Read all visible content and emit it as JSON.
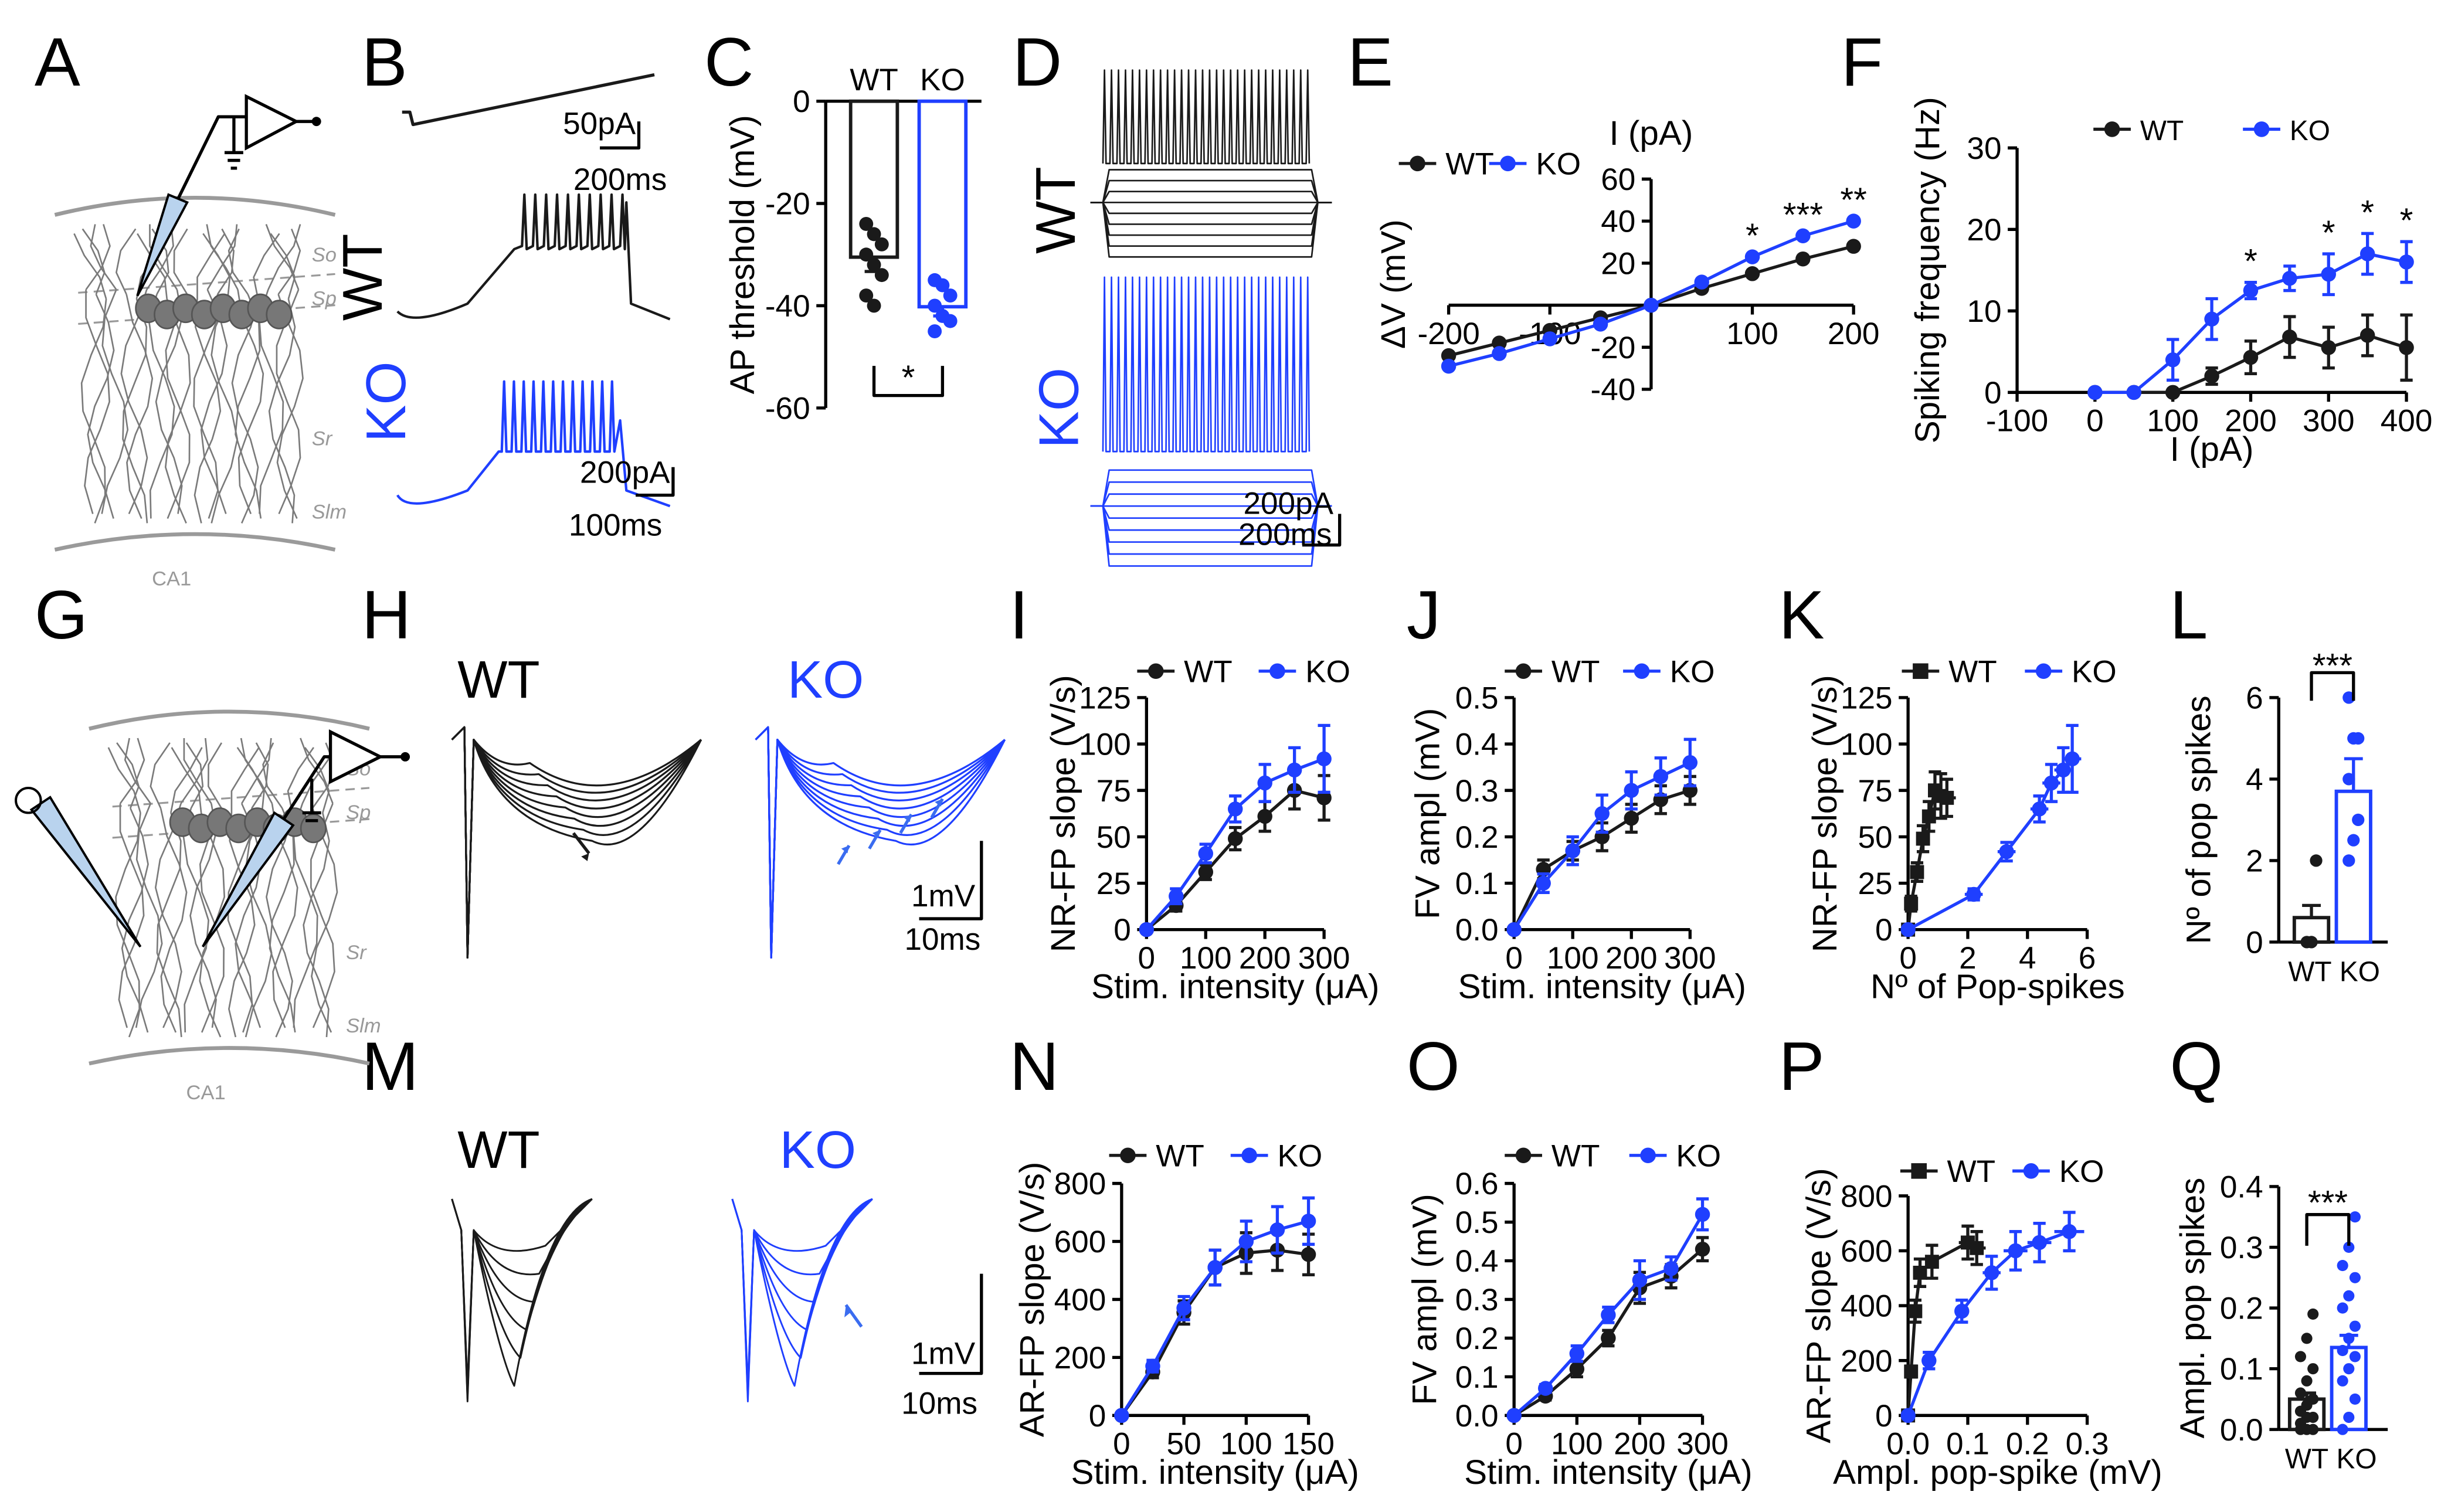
{
  "colors": {
    "wt": "#1a1a1a",
    "ko": "#1f3fff",
    "schematic": "#666666",
    "schematic_light": "#9a9a9a",
    "arrow_blue": "#3a6cf0"
  },
  "panel_letters": [
    "A",
    "B",
    "C",
    "D",
    "E",
    "F",
    "G",
    "H",
    "I",
    "J",
    "K",
    "L",
    "M",
    "N",
    "O",
    "P",
    "Q"
  ],
  "schematic_A": {
    "layers": [
      "So",
      "Sp",
      "Sr",
      "Slm"
    ],
    "region": "CA1"
  },
  "schematic_G": {
    "layers": [
      "So",
      "Sp",
      "Sr",
      "Slm"
    ],
    "region": "CA1"
  },
  "panel_B": {
    "wt_label": "WT",
    "ko_label": "KO",
    "scale_top": [
      "50pA",
      "200ms"
    ],
    "scale_bottom": [
      "200pA",
      "100ms"
    ]
  },
  "panel_D": {
    "wt_label": "WT",
    "ko_label": "KO",
    "scale": [
      "200pA",
      "200ms"
    ]
  },
  "panel_H": {
    "wt_label": "WT",
    "ko_label": "KO",
    "scale": [
      "1mV",
      "10ms"
    ]
  },
  "panel_M": {
    "wt_label": "WT",
    "ko_label": "KO",
    "scale": [
      "1mV",
      "10ms"
    ]
  },
  "chart_data": [
    {
      "panel": "C",
      "type": "bar",
      "categories": [
        "WT",
        "KO"
      ],
      "values": [
        -30.5,
        -40.2
      ],
      "errors": [
        2.8,
        1.8
      ],
      "points": {
        "WT": [
          -24,
          -26,
          -28,
          -30,
          -32,
          -34,
          -38,
          -40
        ],
        "KO": [
          -35,
          -36,
          -38,
          -40,
          -42,
          -43,
          -45
        ]
      },
      "ylabel": "AP threshold (mV)",
      "ylim": [
        -60,
        0
      ],
      "yticks": [
        0,
        -20,
        -40,
        -60
      ],
      "significance": "*"
    },
    {
      "panel": "E",
      "type": "line",
      "title": "I (pA)",
      "ylabel": "ΔV (mV)",
      "x": [
        -200,
        -150,
        -100,
        -50,
        0,
        50,
        100,
        150,
        200
      ],
      "xticks": [
        -200,
        -100,
        100,
        200
      ],
      "yticks": [
        60,
        40,
        20,
        -20,
        -40
      ],
      "xlim": [
        -200,
        200
      ],
      "ylim": [
        -40,
        60
      ],
      "legend": [
        "WT",
        "KO"
      ],
      "series": [
        {
          "name": "WT",
          "values": [
            -24,
            -18,
            -12,
            -6,
            0,
            8,
            15,
            22,
            28
          ]
        },
        {
          "name": "KO",
          "values": [
            -29,
            -23,
            -16,
            -9,
            0,
            11,
            23,
            33,
            40
          ]
        }
      ],
      "significance": [
        {
          "x": 100,
          "text": "*"
        },
        {
          "x": 150,
          "text": "***"
        },
        {
          "x": 200,
          "text": "**"
        }
      ]
    },
    {
      "panel": "F",
      "type": "line",
      "xlabel": "I (pA)",
      "ylabel": "Spiking frequency (Hz)",
      "x": [
        0,
        50,
        100,
        150,
        200,
        250,
        300,
        350,
        400
      ],
      "xlim": [
        -100,
        400
      ],
      "ylim": [
        0,
        30
      ],
      "xticks": [
        -100,
        0,
        100,
        200,
        300,
        400
      ],
      "yticks": [
        0,
        10,
        20,
        30
      ],
      "legend": [
        "WT",
        "KO"
      ],
      "series": [
        {
          "name": "WT",
          "values": [
            0,
            0,
            0,
            2,
            4.3,
            6.8,
            5.5,
            7,
            5.5
          ],
          "errors": [
            0,
            0,
            0,
            1,
            2,
            2.5,
            2.5,
            2.5,
            4
          ]
        },
        {
          "name": "KO",
          "values": [
            0,
            0,
            4,
            9,
            12.5,
            14,
            14.5,
            17,
            16
          ],
          "errors": [
            0,
            0,
            2.5,
            2.5,
            1,
            1.5,
            2.5,
            2.5,
            2.5
          ]
        }
      ],
      "significance": [
        {
          "x": 200,
          "text": "*"
        },
        {
          "x": 300,
          "text": "*"
        },
        {
          "x": 350,
          "text": "*"
        },
        {
          "x": 400,
          "text": "*"
        }
      ]
    },
    {
      "panel": "I",
      "type": "line",
      "xlabel": "Stim. intensity (μA)",
      "ylabel": "NR-FP slope (V/s)",
      "x": [
        0,
        50,
        100,
        150,
        200,
        250,
        300
      ],
      "xlim": [
        0,
        300
      ],
      "ylim": [
        0,
        125
      ],
      "xticks": [
        0,
        100,
        200,
        300
      ],
      "yticks": [
        0,
        25,
        50,
        75,
        100,
        125
      ],
      "legend": [
        "WT",
        "KO"
      ],
      "series": [
        {
          "name": "WT",
          "values": [
            0,
            13,
            31,
            49,
            61,
            75,
            71
          ],
          "errors": [
            0,
            3,
            4,
            6,
            8,
            10,
            12
          ]
        },
        {
          "name": "KO",
          "values": [
            0,
            18,
            41,
            65,
            79,
            86,
            92
          ],
          "errors": [
            0,
            4,
            5,
            7,
            10,
            12,
            18
          ]
        }
      ]
    },
    {
      "panel": "J",
      "type": "line",
      "xlabel": "Stim. intensity (μA)",
      "ylabel": "FV ampl (mV)",
      "x": [
        0,
        50,
        100,
        150,
        200,
        250,
        300
      ],
      "xlim": [
        0,
        300
      ],
      "ylim": [
        0,
        0.5
      ],
      "xticks": [
        0,
        100,
        200,
        300
      ],
      "yticks": [
        0.0,
        0.1,
        0.2,
        0.3,
        0.4,
        0.5
      ],
      "legend": [
        "WT",
        "KO"
      ],
      "series": [
        {
          "name": "WT",
          "values": [
            0,
            0.13,
            0.17,
            0.2,
            0.24,
            0.28,
            0.3
          ],
          "errors": [
            0,
            0.02,
            0.02,
            0.03,
            0.03,
            0.03,
            0.03
          ]
        },
        {
          "name": "KO",
          "values": [
            0,
            0.1,
            0.17,
            0.25,
            0.3,
            0.33,
            0.36
          ],
          "errors": [
            0,
            0.02,
            0.03,
            0.04,
            0.04,
            0.04,
            0.05
          ]
        }
      ]
    },
    {
      "panel": "K",
      "type": "line",
      "xlabel": "Nº of Pop-spikes",
      "ylabel": "NR-FP slope (V/s)",
      "xlim": [
        0,
        6
      ],
      "ylim": [
        0,
        125
      ],
      "xticks": [
        0,
        2,
        4,
        6
      ],
      "yticks": [
        0,
        25,
        50,
        75,
        100,
        125
      ],
      "legend": [
        "WT",
        "KO"
      ],
      "series": [
        {
          "name": "WT",
          "x": [
            0,
            0.1,
            0.3,
            0.5,
            0.7,
            0.9,
            1.1,
            1.3
          ],
          "values": [
            0,
            14,
            31,
            49,
            61,
            75,
            72,
            71
          ],
          "errors": [
            0,
            4,
            5,
            7,
            8,
            10,
            12,
            10
          ],
          "xerr": [
            0,
            0.1,
            0.1,
            0.2,
            0.2,
            0.2,
            0.2,
            0.3
          ]
        },
        {
          "name": "KO",
          "x": [
            0,
            2.2,
            3.3,
            4.4,
            4.8,
            5.2,
            5.5
          ],
          "values": [
            0,
            19,
            42,
            65,
            79,
            86,
            92
          ],
          "errors": [
            0,
            3,
            5,
            7,
            10,
            12,
            18
          ],
          "xerr": [
            0,
            0.3,
            0.3,
            0.3,
            0.3,
            0.3,
            0.3
          ]
        }
      ]
    },
    {
      "panel": "L",
      "type": "bar",
      "categories": [
        "WT",
        "KO"
      ],
      "values": [
        0.6,
        3.7
      ],
      "errors": [
        0.3,
        0.8
      ],
      "points": {
        "WT": [
          0,
          0,
          2
        ],
        "KO": [
          2,
          2.5,
          3,
          4,
          5,
          5,
          6
        ]
      },
      "ylabel": "Nº of  pop spikes",
      "ylim": [
        0,
        6
      ],
      "yticks": [
        0,
        2,
        4,
        6
      ],
      "significance": "***"
    },
    {
      "panel": "N",
      "type": "line",
      "xlabel": "Stim. intensity (μA)",
      "ylabel": "AR-FP slope (V/s)",
      "x": [
        0,
        25,
        50,
        75,
        100,
        125,
        150
      ],
      "xlim": [
        0,
        150
      ],
      "ylim": [
        0,
        800
      ],
      "xticks": [
        0,
        50,
        100,
        150
      ],
      "yticks": [
        0,
        200,
        400,
        600,
        800
      ],
      "legend": [
        "WT",
        "KO"
      ],
      "series": [
        {
          "name": "WT",
          "values": [
            0,
            150,
            355,
            510,
            560,
            570,
            555
          ],
          "errors": [
            0,
            20,
            40,
            60,
            70,
            70,
            70
          ]
        },
        {
          "name": "KO",
          "values": [
            0,
            170,
            370,
            510,
            600,
            640,
            670
          ],
          "errors": [
            0,
            20,
            40,
            60,
            70,
            80,
            80
          ]
        }
      ]
    },
    {
      "panel": "O",
      "type": "line",
      "xlabel": "Stim. intensity (μA)",
      "ylabel": "FV ampl (mV)",
      "x": [
        0,
        50,
        100,
        150,
        200,
        250,
        300
      ],
      "xlim": [
        0,
        300
      ],
      "ylim": [
        0,
        0.6
      ],
      "xticks": [
        0,
        100,
        200,
        300
      ],
      "yticks": [
        0.0,
        0.1,
        0.2,
        0.3,
        0.4,
        0.5,
        0.6
      ],
      "legend": [
        "WT",
        "KO"
      ],
      "series": [
        {
          "name": "WT",
          "values": [
            0,
            0.05,
            0.12,
            0.2,
            0.33,
            0.36,
            0.43
          ],
          "errors": [
            0,
            0.01,
            0.02,
            0.02,
            0.04,
            0.03,
            0.03
          ]
        },
        {
          "name": "KO",
          "values": [
            0,
            0.07,
            0.16,
            0.26,
            0.35,
            0.38,
            0.52
          ],
          "errors": [
            0,
            0.01,
            0.02,
            0.02,
            0.05,
            0.03,
            0.04
          ]
        }
      ]
    },
    {
      "panel": "P",
      "type": "line",
      "xlabel": "Ampl. pop-spike (mV)",
      "ylabel": "AR-FP slope (V/s)",
      "xlim": [
        0,
        0.3
      ],
      "ylim": [
        0,
        800
      ],
      "xticks": [
        0.0,
        0.1,
        0.2,
        0.3
      ],
      "yticks": [
        0,
        200,
        400,
        600,
        800
      ],
      "legend": [
        "WT",
        "KO"
      ],
      "series": [
        {
          "name": "WT",
          "x": [
            0,
            0.005,
            0.012,
            0.02,
            0.04,
            0.1,
            0.115
          ],
          "values": [
            0,
            160,
            380,
            520,
            560,
            630,
            610
          ],
          "errors": [
            0,
            20,
            40,
            50,
            60,
            60,
            60
          ],
          "xerr": [
            0,
            0.005,
            0.005,
            0.01,
            0.01,
            0.015,
            0.015
          ]
        },
        {
          "name": "KO",
          "x": [
            0,
            0.035,
            0.09,
            0.14,
            0.18,
            0.22,
            0.27
          ],
          "values": [
            0,
            200,
            380,
            520,
            600,
            630,
            670
          ],
          "errors": [
            0,
            30,
            40,
            60,
            70,
            70,
            70
          ],
          "xerr": [
            0,
            0.01,
            0.01,
            0.015,
            0.02,
            0.02,
            0.025
          ]
        }
      ]
    },
    {
      "panel": "Q",
      "type": "bar",
      "categories": [
        "WT",
        "KO"
      ],
      "values": [
        0.05,
        0.135
      ],
      "errors": [
        0.01,
        0.02
      ],
      "points": {
        "WT": [
          0,
          0,
          0,
          0.01,
          0.02,
          0.02,
          0.03,
          0.04,
          0.05,
          0.06,
          0.08,
          0.1,
          0.12,
          0.15,
          0.19
        ],
        "KO": [
          0,
          0.02,
          0.05,
          0.08,
          0.1,
          0.12,
          0.13,
          0.15,
          0.17,
          0.2,
          0.22,
          0.25,
          0.27,
          0.3,
          0.35
        ]
      },
      "ylabel": "Ampl. pop spikes",
      "ylim": [
        0,
        0.4
      ],
      "yticks": [
        0.0,
        0.1,
        0.2,
        0.3,
        0.4
      ],
      "significance": "***"
    }
  ]
}
